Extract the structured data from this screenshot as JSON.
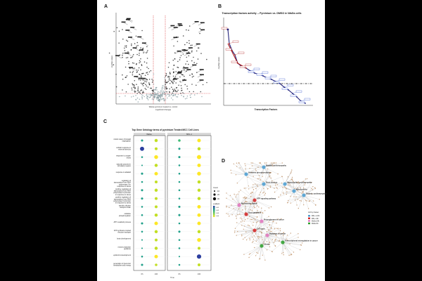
{
  "panels": {
    "a": {
      "label": "A",
      "y_label": "-log10(p-value)",
      "x_title_1": "WaGa pyrvinium treated vs. control",
      "x_title_2": "Log2(Fold Change)"
    },
    "b": {
      "label": "B",
      "title": "Transcription factors activity -- Pyrvinium vs. DMSO in WaGa cells",
      "y_label": "-log10(p-value)",
      "x_label": "Transcription Factors"
    },
    "c": {
      "label": "C",
      "title": "Top Gene Ontology terms of pyrvinium Treated MCC Cell Lines",
      "facets": [
        "WaGa",
        "MKL-1"
      ],
      "x_ticks": [
        "6h",
        "24h",
        "6h",
        "24h"
      ],
      "x_label": "Time",
      "terms": [
        "mitotic sister chromatid segregation",
        "cellular response to external stimulus",
        "response to oxygen levels",
        "vascular process in circulatory system",
        "response to alkaloid",
        "regulation of transcription from RNA polymerase II in response to stress",
        "positive regulation of transcription from RNA polymerase II promoter in response to stress",
        "positive regulation of transcription from RNA polymerase II promoter in response to stress",
        "aerobic electron transport chain",
        "oxidative phosphorylation",
        "ATP metabolic process",
        "ATP synthesis coupled electron transport",
        "brain development",
        "neuron projection guidance",
        "epidermis development",
        "generation of precursor metabolites and energy"
      ],
      "legend": {
        "count_title": "Count",
        "count_values": [
          "10",
          "20",
          "30"
        ],
        "padj_title": "p.adjust",
        "padj_values": [
          "0.01",
          "0.02",
          "0.03",
          "0.04"
        ]
      },
      "dots": [
        [
          0.3,
          0.6,
          0.4,
          0.7
        ],
        [
          0.9,
          0.5,
          0.3,
          0.6
        ],
        [
          0.2,
          0.8,
          0.3,
          0.9
        ],
        [
          0.1,
          0.6,
          0.2,
          0.7
        ],
        [
          0.3,
          0.7,
          0.2,
          0.8
        ],
        [
          0.2,
          0.5,
          0.2,
          0.6
        ],
        [
          0.3,
          0.6,
          0.2,
          0.6
        ],
        [
          0.3,
          0.5,
          0.2,
          0.6
        ],
        [
          0.2,
          0.5,
          0.3,
          0.7
        ],
        [
          0.2,
          0.6,
          0.3,
          0.7
        ],
        [
          0.3,
          0.7,
          0.2,
          0.7
        ],
        [
          0.2,
          0.6,
          0.3,
          0.6
        ],
        [
          0.1,
          0.5,
          0.2,
          0.8
        ],
        [
          0.1,
          0.6,
          0.2,
          0.5
        ],
        [
          0.2,
          0.7,
          0.1,
          0.95
        ],
        [
          0.3,
          0.4,
          0.2,
          0.5
        ]
      ]
    },
    "d": {
      "label": "D",
      "hubs": [
        "Platelet cardiomyopathy",
        "Oxidative phosphorylation",
        "Hypertrophic cardiomyopathy",
        "Prion disease",
        "Mitochondria",
        "Diabetic cardiomyopathy",
        "ATP signaling pathway",
        "Neuroactive ligand",
        "Axon guidance",
        "Proteoglycans in cancer",
        "Cell cycle",
        "Pathways in cancer",
        "Glioma",
        "Transcriptional misregulation in cancer"
      ],
      "legend_title": "GO by Cluster",
      "legend_items": [
        "MKL-1 24h",
        "MKL-1 6h",
        "WaGa 24h",
        "WaGa 6h"
      ],
      "legend_colors": [
        "#4a9fd4",
        "#d62728",
        "#e377c2",
        "#2ca02c"
      ]
    }
  }
}
